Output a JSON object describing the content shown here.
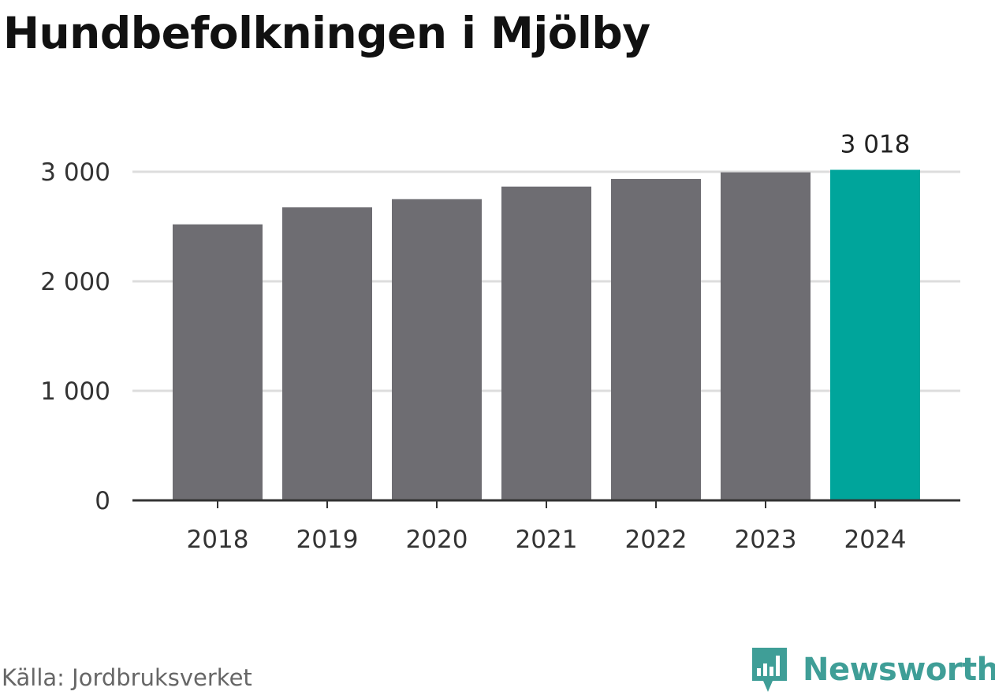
{
  "title": "Hundbefolkningen i Mjölby",
  "source": "Källa: Jordbruksverket",
  "brand": {
    "name": "Newsworthy",
    "logo_icon": "newsworthy-bar-chart-logo-icon",
    "color": "#3f9e97"
  },
  "chart_data": {
    "type": "bar",
    "title": "Hundbefolkningen i Mjölby",
    "xlabel": "",
    "ylabel": "",
    "categories": [
      "2018",
      "2019",
      "2020",
      "2021",
      "2022",
      "2023",
      "2024"
    ],
    "values": [
      2520,
      2675,
      2750,
      2865,
      2935,
      2995,
      3018
    ],
    "ylim": [
      0,
      3000
    ],
    "yticks": [
      0,
      1000,
      2000,
      3000
    ],
    "ytick_labels": [
      "0",
      "1 000",
      "2 000",
      "3 000"
    ],
    "grid": true,
    "highlight_index": 6,
    "highlight_label": "3 018",
    "colors": {
      "bar": "#6e6d72",
      "highlight": "#00a59b",
      "grid": "#dddddd",
      "axis": "#333333"
    }
  }
}
